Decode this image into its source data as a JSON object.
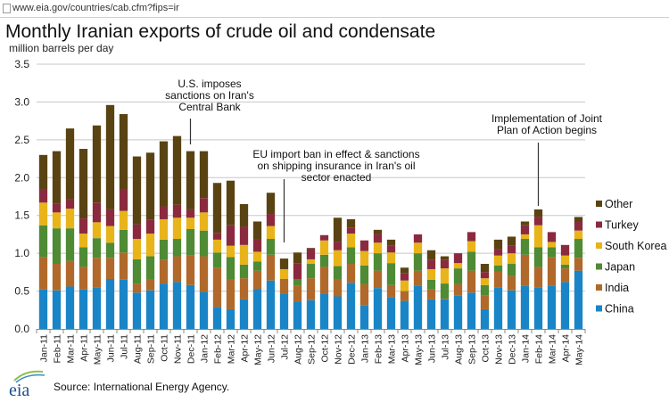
{
  "browser": {
    "url": "www.eia.gov/countries/cab.cfm?fips=ir"
  },
  "chart_data": {
    "type": "bar",
    "stacked": true,
    "title": "Monthly Iranian exports of crude oil and condensate",
    "ylabel": "million barrels per day",
    "xlabel": "",
    "ylim": [
      0,
      3.5
    ],
    "yticks": [
      "0.0",
      "0.5",
      "1.0",
      "1.5",
      "2.0",
      "2.5",
      "3.0",
      "3.5"
    ],
    "grid": true,
    "legend_position": "right",
    "categories": [
      "Jan-11",
      "Feb-11",
      "Mar-11",
      "Apr-11",
      "May-11",
      "Jun-11",
      "Jul-11",
      "Aug-11",
      "Sep-11",
      "Oct-11",
      "Nov-11",
      "Dec-11",
      "Jan-12",
      "Feb-12",
      "Mar-12",
      "Apr-12",
      "May-12",
      "Jun-12",
      "Jul-12",
      "Aug-12",
      "Sep-12",
      "Oct-12",
      "Nov-12",
      "Dec-12",
      "Jan-13",
      "Feb-13",
      "Mar-13",
      "Apr-13",
      "May-13",
      "Jun-13",
      "Jul-13",
      "Aug-13",
      "Sep-13",
      "Oct-13",
      "Nov-13",
      "Dec-13",
      "Jan-14",
      "Feb-14",
      "Mar-14",
      "Apr-14",
      "May-14"
    ],
    "series": [
      {
        "name": "China",
        "color": "#1a85c6",
        "values": [
          0.52,
          0.51,
          0.56,
          0.52,
          0.55,
          0.66,
          0.65,
          0.48,
          0.51,
          0.6,
          0.62,
          0.58,
          0.49,
          0.29,
          0.26,
          0.39,
          0.53,
          0.64,
          0.47,
          0.36,
          0.38,
          0.46,
          0.43,
          0.61,
          0.31,
          0.54,
          0.42,
          0.37,
          0.57,
          0.39,
          0.39,
          0.44,
          0.48,
          0.26,
          0.55,
          0.51,
          0.57,
          0.55,
          0.57,
          0.62,
          0.77
        ]
      },
      {
        "name": "India",
        "color": "#b0692a",
        "values": [
          0.43,
          0.35,
          0.34,
          0.3,
          0.39,
          0.28,
          0.36,
          0.12,
          0.15,
          0.31,
          0.34,
          0.39,
          0.47,
          0.52,
          0.4,
          0.28,
          0.24,
          0.34,
          0.19,
          0.21,
          0.29,
          0.36,
          0.23,
          0.25,
          0.28,
          0.23,
          0.16,
          0.13,
          0.2,
          0.13,
          0.01,
          0.15,
          0.29,
          0.18,
          0.21,
          0.19,
          0.41,
          0.27,
          0.38,
          0.18,
          0.17
        ]
      },
      {
        "name": "Japan",
        "color": "#4f8a34",
        "values": [
          0.42,
          0.47,
          0.43,
          0.26,
          0.26,
          0.2,
          0.3,
          0.32,
          0.3,
          0.27,
          0.23,
          0.35,
          0.34,
          0.2,
          0.29,
          0.18,
          0.12,
          0.21,
          0.0,
          0.09,
          0.19,
          0.16,
          0.17,
          0.22,
          0.25,
          0.23,
          0.29,
          0.0,
          0.23,
          0.13,
          0.2,
          0.21,
          0.25,
          0.14,
          0.08,
          0.16,
          0.21,
          0.26,
          0.13,
          0.05,
          0.25
        ]
      },
      {
        "name": "South Korea",
        "color": "#e8b41a",
        "values": [
          0.3,
          0.21,
          0.26,
          0.18,
          0.21,
          0.22,
          0.25,
          0.27,
          0.3,
          0.27,
          0.28,
          0.15,
          0.24,
          0.17,
          0.15,
          0.26,
          0.13,
          0.17,
          0.13,
          0.0,
          0.06,
          0.19,
          0.21,
          0.18,
          0.19,
          0.14,
          0.14,
          0.14,
          0.14,
          0.14,
          0.2,
          0.07,
          0.14,
          0.09,
          0.13,
          0.14,
          0.06,
          0.29,
          0.07,
          0.12,
          0.11
        ]
      },
      {
        "name": "Turkey",
        "color": "#8b2a3f",
        "values": [
          0.18,
          0.12,
          0.13,
          0.2,
          0.26,
          0.22,
          0.29,
          0.19,
          0.18,
          0.17,
          0.17,
          0.11,
          0.19,
          0.09,
          0.27,
          0.24,
          0.17,
          0.16,
          0.0,
          0.21,
          0.14,
          0.07,
          0.11,
          0.08,
          0.14,
          0.11,
          0.09,
          0.1,
          0.11,
          0.12,
          0.11,
          0.13,
          0.12,
          0.08,
          0.09,
          0.1,
          0.12,
          0.11,
          0.13,
          0.14,
          0.12
        ]
      },
      {
        "name": "Other",
        "color": "#5a4312",
        "values": [
          0.45,
          0.69,
          0.93,
          0.92,
          1.02,
          1.38,
          0.99,
          0.9,
          0.89,
          0.86,
          0.91,
          0.77,
          0.62,
          0.66,
          0.59,
          0.3,
          0.23,
          0.28,
          0.14,
          0.14,
          0.01,
          0.0,
          0.32,
          0.11,
          0.0,
          0.06,
          0.08,
          0.07,
          0.0,
          0.13,
          0.05,
          0.0,
          0.0,
          0.11,
          0.12,
          0.12,
          0.05,
          0.1,
          0.0,
          0.0,
          0.06
        ]
      }
    ],
    "totals": [
      2.3,
      2.35,
      2.65,
      2.38,
      2.69,
      2.96,
      2.84,
      2.28,
      2.33,
      2.48,
      2.55,
      2.35,
      2.35,
      1.93,
      1.96,
      1.65,
      1.42,
      1.8,
      0.93,
      1.01,
      1.07,
      1.24,
      1.47,
      1.45,
      1.17,
      1.31,
      1.18,
      0.81,
      1.25,
      1.04,
      0.96,
      1.0,
      1.28,
      0.86,
      1.18,
      1.22,
      1.42,
      1.58,
      1.28,
      1.11,
      1.48
    ],
    "annotations": [
      {
        "lines": [
          "U.S. imposes",
          "sanctions on Iran's",
          "Central Bank"
        ],
        "month": "Dec-11"
      },
      {
        "lines": [
          "EU import ban in effect & sanctions",
          "on shipping insurance in Iran's oil",
          "sector enacted"
        ],
        "month": "Jul-12"
      },
      {
        "lines": [
          "Implementation  of Joint",
          "Plan of Action begins"
        ],
        "month": "Feb-14"
      }
    ]
  },
  "footer": {
    "logo": "eia",
    "source": "Source: International  Energy Agency."
  }
}
